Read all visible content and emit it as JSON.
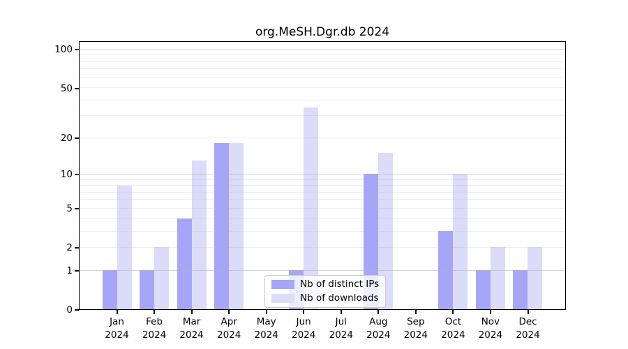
{
  "figure": {
    "title": "org.MeSH.Dgr.db 2024"
  },
  "legend": {
    "items": [
      {
        "label": "Nb of distinct IPs"
      },
      {
        "label": "Nb of downloads"
      }
    ]
  },
  "colors": {
    "bar_ips": "#a6a6f8",
    "bar_downloads": "#dbdbfa",
    "grid_major": "rgba(176,176,176,0.55)",
    "grid_minor": "rgba(176,176,176,0.22)",
    "spine": "#000000",
    "legend_border": "#c9c9c9",
    "legend_bg": "rgba(255,255,255,0.8)",
    "text": "#000000"
  },
  "chart_data": {
    "type": "bar",
    "title": "org.MeSH.Dgr.db 2024",
    "categories": [
      "Jan 2024",
      "Feb 2024",
      "Mar 2024",
      "Apr 2024",
      "May 2024",
      "Jun 2024",
      "Jul 2024",
      "Aug 2024",
      "Sep 2024",
      "Oct 2024",
      "Nov 2024",
      "Dec 2024"
    ],
    "x_tick_line1": [
      "Jan",
      "Feb",
      "Mar",
      "Apr",
      "May",
      "Jun",
      "Jul",
      "Aug",
      "Sep",
      "Oct",
      "Nov",
      "Dec"
    ],
    "x_tick_line2": "2024",
    "series": [
      {
        "name": "Nb of distinct IPs",
        "color_key": "bar_ips",
        "values": [
          1,
          1,
          4,
          18,
          0,
          1,
          0,
          10,
          0,
          3,
          1,
          1
        ]
      },
      {
        "name": "Nb of downloads",
        "color_key": "bar_downloads",
        "values": [
          8,
          2,
          13,
          18,
          0,
          35,
          0,
          15,
          0,
          10,
          2,
          2
        ]
      }
    ],
    "xlabel": "",
    "ylabel": "",
    "y_scale": "log1p",
    "ylim": [
      0,
      101
    ],
    "y_axis_ticks": [
      0,
      1,
      2,
      5,
      10,
      20,
      50,
      100
    ],
    "y_gridlines_major": [
      1,
      10,
      100
    ],
    "y_gridlines_minor": [
      2,
      3,
      4,
      5,
      6,
      7,
      8,
      9,
      20,
      30,
      40,
      50,
      60,
      70,
      80,
      90
    ],
    "grid": "horizontal, drawn above bars",
    "legend_position": "inside lower center",
    "bar_width_fraction": 0.4
  }
}
